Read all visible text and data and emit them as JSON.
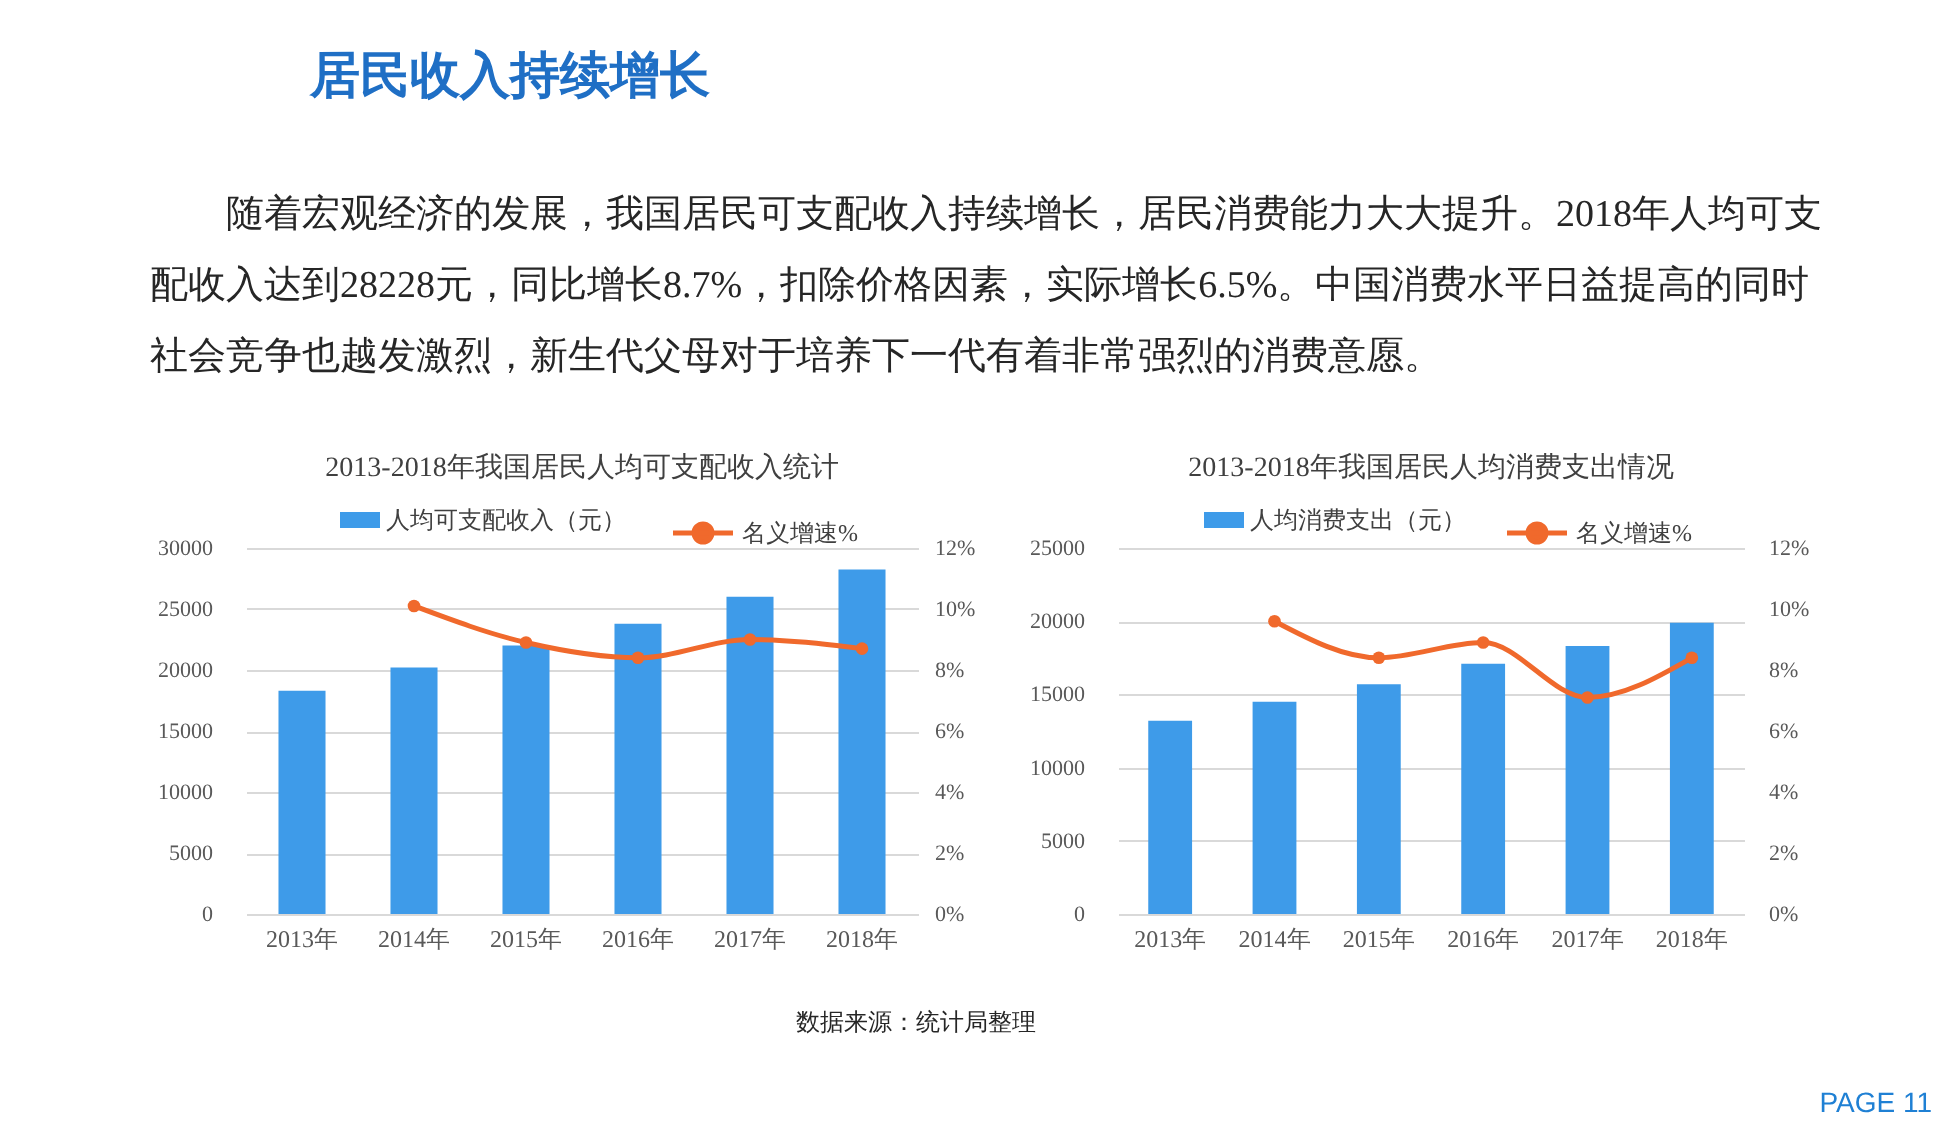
{
  "chart_data": [
    {
      "type": "other",
      "title": "居民收入持续增长",
      "annotations": [
        "随着宏观经济的发展，我国居民可支配收入持续增长，居民消费能力大大提升。2018年人均可支配收入达到28228元，同比增长8.7%，扣除价格因素，实际增长6.5%。中国消费水平日益提高的同时社会竞争也越发激烈，新生代父母对于培养下一代有着非常强烈的消费意愿。"
      ]
    },
    {
      "type": "bar",
      "title": "2013-2018年我国居民人均可支配收入统计",
      "categories": [
        "2013年",
        "2014年",
        "2015年",
        "2016年",
        "2017年",
        "2018年"
      ],
      "series": [
        {
          "name": "人均可支配收入（元）",
          "type": "bar",
          "color": "#3e9be9",
          "values": [
            18300,
            20200,
            22000,
            23800,
            26000,
            28228
          ]
        },
        {
          "name": "名义增速%",
          "type": "line",
          "axis": "y2",
          "color": "#f0692c",
          "values": [
            null,
            10.1,
            8.9,
            8.4,
            9.0,
            8.7
          ]
        }
      ],
      "ylim": [
        0,
        30000
      ],
      "yticks": [
        0,
        5000,
        10000,
        15000,
        20000,
        25000,
        30000
      ],
      "y2lim": [
        0,
        12
      ],
      "y2ticks": [
        {
          "value": 0,
          "label": "0%"
        },
        {
          "value": 2,
          "label": "2%"
        },
        {
          "value": 4,
          "label": "4%"
        },
        {
          "value": 6,
          "label": "6%"
        },
        {
          "value": 8,
          "label": "8%"
        },
        {
          "value": 10,
          "label": "10%"
        },
        {
          "value": 12,
          "label": "12%"
        }
      ],
      "grid": "y",
      "legend": "top",
      "marker": "circle"
    },
    {
      "type": "bar",
      "title": "2013-2018年我国居民人均消费支出情况",
      "categories": [
        "2013年",
        "2014年",
        "2015年",
        "2016年",
        "2017年",
        "2018年"
      ],
      "series": [
        {
          "name": "人均消费支出（元）",
          "type": "bar",
          "color": "#3e9be9",
          "values": [
            13200,
            14500,
            15700,
            17100,
            18300,
            19900
          ]
        },
        {
          "name": "名义增速%",
          "type": "line",
          "axis": "y2",
          "color": "#f0692c",
          "values": [
            null,
            9.6,
            8.4,
            8.9,
            7.1,
            8.4
          ]
        }
      ],
      "ylim": [
        0,
        25000
      ],
      "yticks": [
        0,
        5000,
        10000,
        15000,
        20000,
        25000
      ],
      "y2lim": [
        0,
        12
      ],
      "y2ticks": [
        {
          "value": 0,
          "label": "0%"
        },
        {
          "value": 2,
          "label": "2%"
        },
        {
          "value": 4,
          "label": "4%"
        },
        {
          "value": 6,
          "label": "6%"
        },
        {
          "value": 8,
          "label": "8%"
        },
        {
          "value": 10,
          "label": "10%"
        },
        {
          "value": 12,
          "label": "12%"
        }
      ],
      "grid": "y",
      "legend": "top",
      "marker": "circle"
    },
    {
      "type": "other",
      "annotations": [
        "数据来源：统计局整理",
        "PAGE 11"
      ]
    }
  ]
}
